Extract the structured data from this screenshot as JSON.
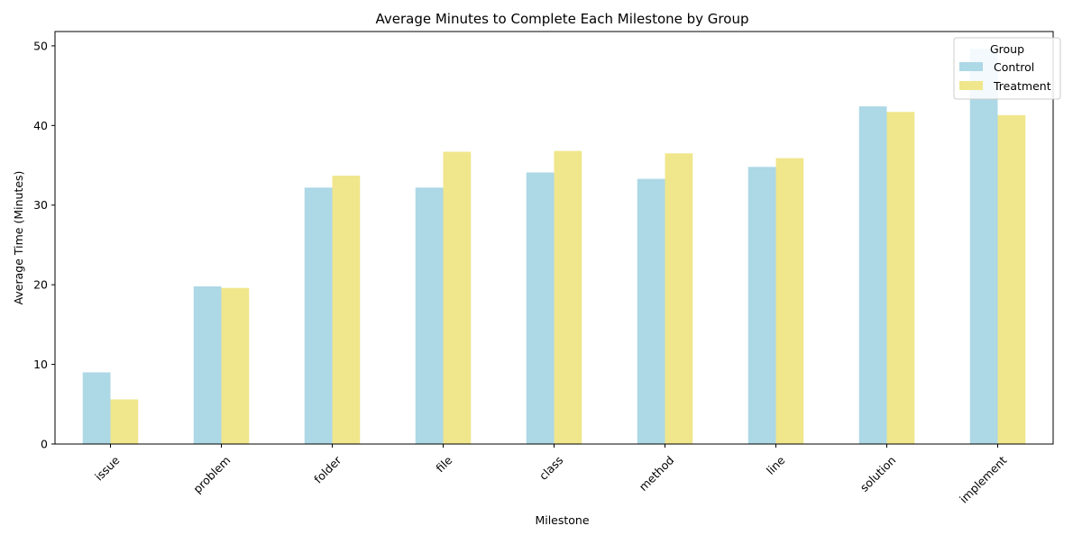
{
  "chart_data": {
    "type": "bar",
    "title": "Average Minutes to Complete Each Milestone by Group",
    "xlabel": "Milestone",
    "ylabel": "Average Time (Minutes)",
    "categories": [
      "issue",
      "problem",
      "folder",
      "file",
      "class",
      "method",
      "line",
      "solution",
      "implement"
    ],
    "series": [
      {
        "name": "Control",
        "color": "#add8e6",
        "values": [
          9.0,
          19.8,
          32.2,
          32.2,
          34.1,
          33.3,
          34.8,
          42.4,
          49.6
        ]
      },
      {
        "name": "Treatment",
        "color": "#f0e68c",
        "values": [
          5.6,
          19.6,
          33.7,
          36.7,
          36.8,
          36.5,
          35.9,
          41.7,
          41.3
        ]
      }
    ],
    "ylim": [
      0,
      51.8
    ],
    "yticks": [
      0,
      10,
      20,
      30,
      40,
      50
    ],
    "grid": false,
    "legend": {
      "title": "Group",
      "placement": "top-right"
    },
    "xtick_rotation": 45
  }
}
